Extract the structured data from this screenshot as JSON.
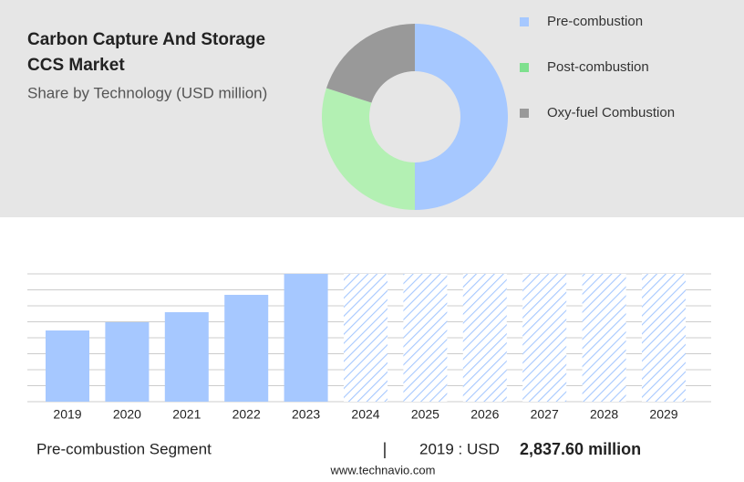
{
  "chart_data": [
    {
      "type": "pie",
      "title": "Carbon Capture And Storage CCS Market",
      "subtitle": "Share by Technology (USD million)",
      "categories": [
        "Pre-combustion",
        "Post-combustion",
        "Oxy-fuel Combustion"
      ],
      "values": [
        50,
        30,
        20
      ],
      "colors": [
        "#a6c8ff",
        "#b3f0b3",
        "#999999"
      ],
      "legend_colors": [
        "#a6c8ff",
        "#7ee08e",
        "#999999"
      ],
      "legend": "right"
    },
    {
      "type": "bar",
      "categories": [
        "2019",
        "2020",
        "2021",
        "2022",
        "2023",
        "2024",
        "2025",
        "2026",
        "2027",
        "2028",
        "2029"
      ],
      "values": [
        2837.6,
        3167,
        3567,
        4258,
        5094,
        null,
        null,
        null,
        null,
        null,
        null
      ],
      "color": "#a6c8ff",
      "ylim": [
        0,
        5094
      ],
      "grid": true
    }
  ],
  "footer": {
    "segment": "Pre-combustion Segment",
    "highlight": "2019 : USD",
    "highlight_value": "2,837.60 million",
    "source": "www.technavio.com"
  }
}
